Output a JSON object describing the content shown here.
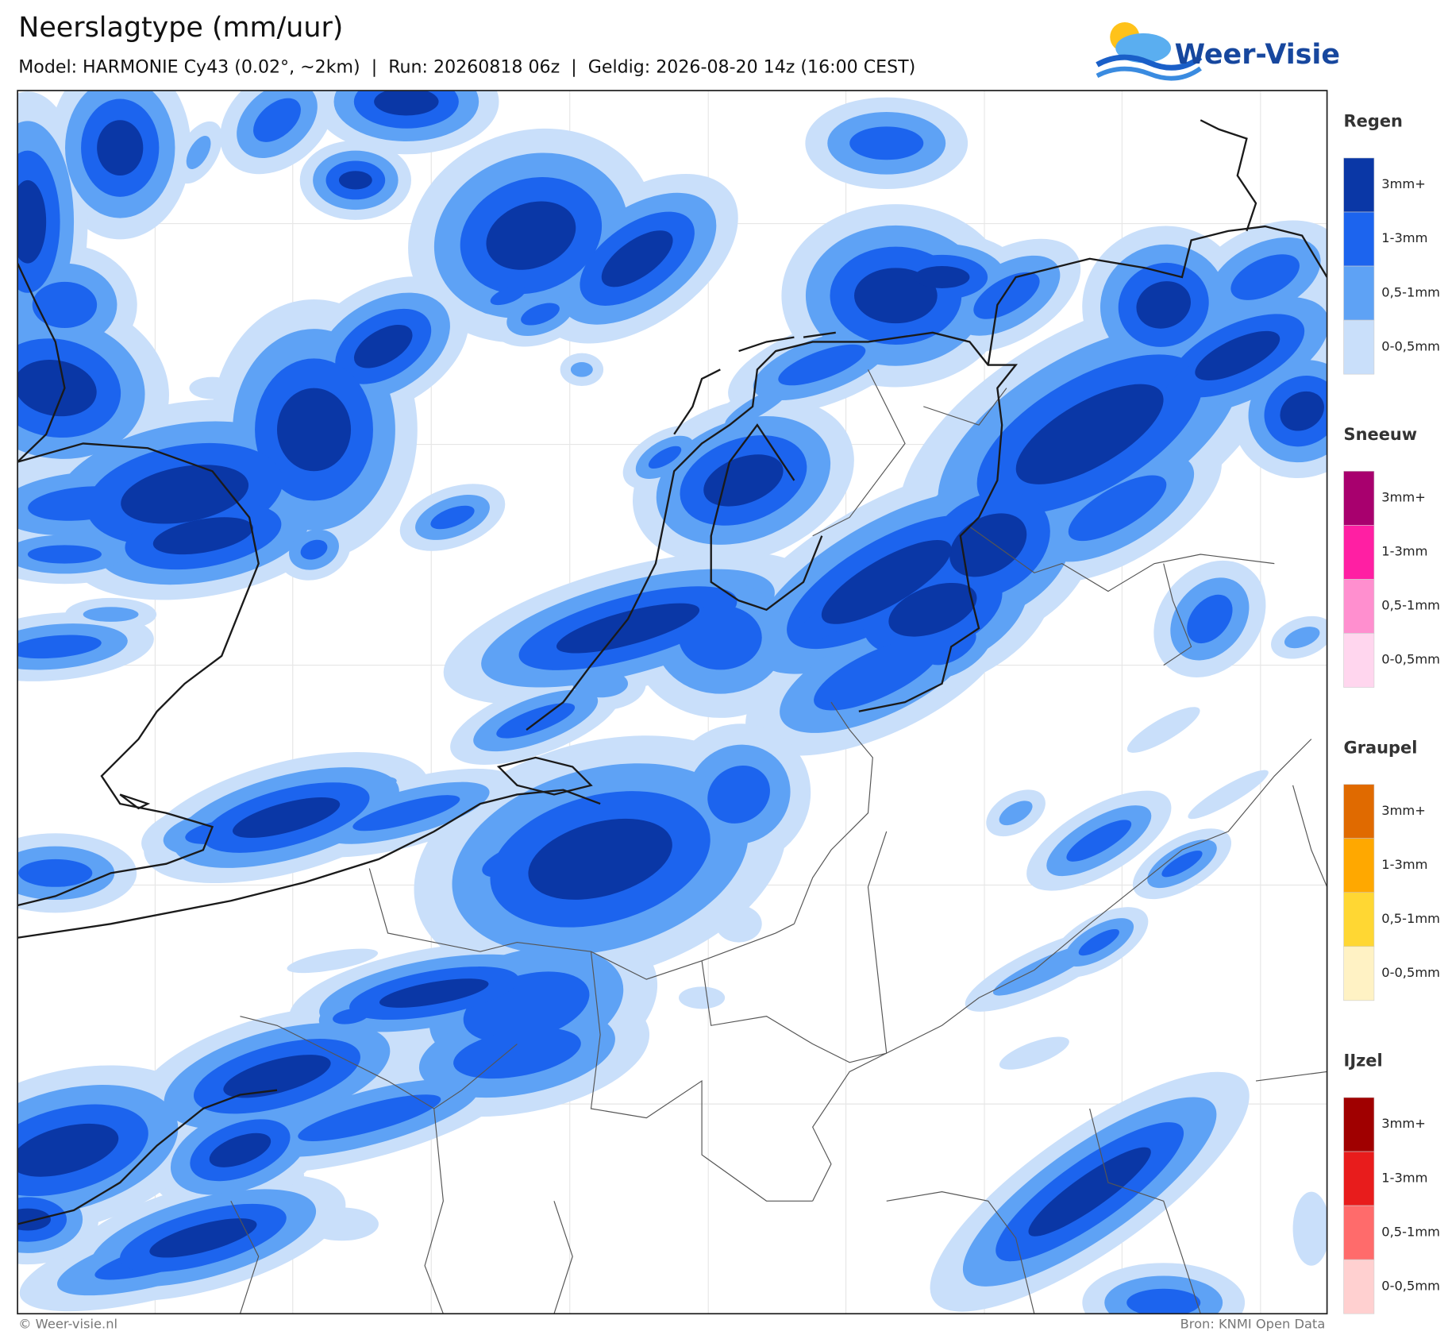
{
  "header": {
    "title": "Neerslagtype (mm/uur)",
    "subtitle": "Model: HARMONIE Cy43 (0.02°, ~2km)  |  Run: 20260818 06z  |  Geldig: 2026-08-20 14z (16:00 CEST)"
  },
  "logo": {
    "text": "Weer-Visie"
  },
  "legend": {
    "groups": [
      {
        "title": "Regen",
        "items": [
          {
            "label": "3mm+",
            "color": "#0a37a6"
          },
          {
            "label": "1-3mm",
            "color": "#1c64ee"
          },
          {
            "label": "0,5-1mm",
            "color": "#5ea2f5"
          },
          {
            "label": "0-0,5mm",
            "color": "#c9dffa"
          }
        ]
      },
      {
        "title": "Sneeuw",
        "items": [
          {
            "label": "3mm+",
            "color": "#a8006e"
          },
          {
            "label": "1-3mm",
            "color": "#ff1fa3"
          },
          {
            "label": "0,5-1mm",
            "color": "#ff8fcf"
          },
          {
            "label": "0-0,5mm",
            "color": "#ffd6ee"
          }
        ]
      },
      {
        "title": "Graupel",
        "items": [
          {
            "label": "3mm+",
            "color": "#e06a00"
          },
          {
            "label": "1-3mm",
            "color": "#ffa800"
          },
          {
            "label": "0,5-1mm",
            "color": "#ffd733"
          },
          {
            "label": "0-0,5mm",
            "color": "#fff2c4"
          }
        ]
      },
      {
        "title": "IJzel",
        "items": [
          {
            "label": "3mm+",
            "color": "#a00000"
          },
          {
            "label": "1-3mm",
            "color": "#e81c1c"
          },
          {
            "label": "0,5-1mm",
            "color": "#ff6b6b"
          },
          {
            "label": "0-0,5mm",
            "color": "#ffd0d0"
          }
        ]
      }
    ]
  },
  "footer": {
    "left": "© Weer-visie.nl",
    "right": "Bron: KNMI Open Data"
  }
}
